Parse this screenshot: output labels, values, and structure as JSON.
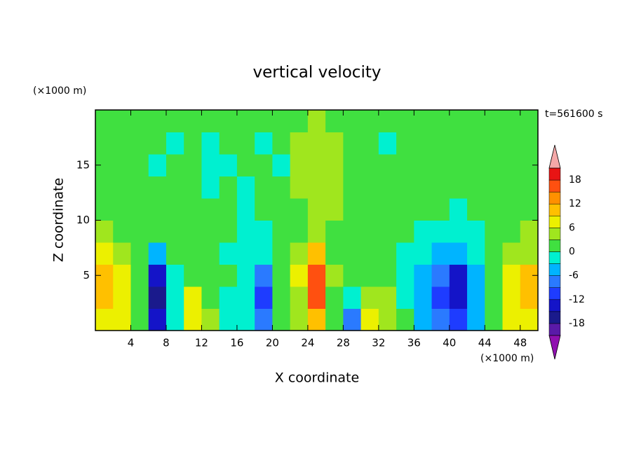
{
  "chart_data": {
    "type": "contourf",
    "title": "vertical velocity",
    "x_label": "X coordinate",
    "y_label": "Z coordinate",
    "x_unit": "(×1000 m)",
    "y_unit": "(×1000 m)",
    "annotation": "t=561600 s",
    "xlim": [
      0,
      50
    ],
    "ylim": [
      0,
      20
    ],
    "xticks": [
      4,
      8,
      12,
      16,
      20,
      24,
      28,
      32,
      36,
      40,
      44,
      48
    ],
    "yticks": [
      5,
      10,
      15
    ],
    "x": [
      1,
      3,
      5,
      7,
      9,
      11,
      13,
      15,
      17,
      19,
      21,
      23,
      25,
      27,
      29,
      31,
      33,
      35,
      37,
      39,
      41,
      43,
      45,
      47,
      49
    ],
    "y": [
      1,
      3,
      5,
      7,
      9,
      11,
      13,
      15,
      17,
      19
    ],
    "z": [
      [
        6,
        7,
        2,
        -15,
        -3,
        8,
        4,
        -1,
        -3,
        -8,
        0,
        3,
        10,
        1,
        -7,
        8,
        5,
        0,
        -4,
        -8,
        -12,
        -5,
        1,
        7,
        8
      ],
      [
        9,
        8,
        0,
        -16,
        -2,
        7,
        2,
        -1,
        -2,
        -11,
        1,
        5,
        16,
        2,
        -1,
        4,
        3,
        -1,
        -5,
        -11,
        -14,
        -6,
        2,
        8,
        10
      ],
      [
        10,
        7,
        1,
        -13,
        -1,
        2,
        1,
        0,
        -2,
        -8,
        1,
        6,
        15,
        3,
        0,
        1,
        1,
        -2,
        -4,
        -8,
        -13,
        -5,
        1,
        6,
        9
      ],
      [
        6,
        4,
        1,
        -6,
        0,
        1,
        1,
        -1,
        -1,
        -3,
        1,
        4,
        9,
        2,
        0,
        1,
        0,
        -2,
        -3,
        -5,
        -6,
        -3,
        1,
        3,
        5
      ],
      [
        3,
        2,
        1,
        0,
        1,
        1,
        1,
        0,
        -1,
        -1,
        1,
        2,
        4,
        2,
        1,
        1,
        1,
        0,
        -1,
        -2,
        -2,
        -1,
        1,
        2,
        3
      ],
      [
        2,
        1,
        1,
        2,
        1,
        1,
        2,
        1,
        -1,
        0,
        1,
        2,
        3,
        3,
        2,
        1,
        1,
        1,
        0,
        1,
        -1,
        0,
        1,
        2,
        2
      ],
      [
        1,
        1,
        2,
        1,
        0,
        1,
        -1,
        1,
        -1,
        1,
        1,
        3,
        4,
        3,
        2,
        1,
        1,
        0,
        1,
        1,
        1,
        0,
        1,
        1,
        1
      ],
      [
        1,
        1,
        1,
        -1,
        1,
        1,
        -1,
        -1,
        1,
        2,
        -1,
        4,
        4,
        3,
        2,
        1,
        1,
        1,
        0,
        1,
        2,
        1,
        1,
        1,
        1
      ],
      [
        1,
        2,
        1,
        1,
        -1,
        1,
        -1,
        2,
        1,
        -1,
        1,
        4,
        3,
        5,
        1,
        1,
        -1,
        2,
        1,
        1,
        2,
        1,
        1,
        1,
        1
      ],
      [
        1,
        2,
        1,
        1,
        2,
        1,
        1,
        2,
        1,
        2,
        1,
        2,
        3,
        2,
        1,
        1,
        1,
        2,
        1,
        2,
        1,
        1,
        2,
        1,
        1
      ]
    ],
    "levels": [
      -21,
      -18,
      -15,
      -12,
      -9,
      -6,
      -3,
      0,
      3,
      6,
      9,
      12,
      15,
      18,
      21
    ],
    "colors": [
      "#5a1aa8",
      "#1a1a8c",
      "#1414c8",
      "#1e3cff",
      "#2a7aff",
      "#00b4ff",
      "#00f0d0",
      "#40e040",
      "#a0e61e",
      "#ecf000",
      "#ffc000",
      "#ff9000",
      "#ff5010",
      "#e81414"
    ],
    "under_color": "#9010b0",
    "over_color": "#f4a8a8",
    "colorbar_ticks": [
      -18,
      -12,
      -6,
      0,
      6,
      12,
      18
    ]
  }
}
